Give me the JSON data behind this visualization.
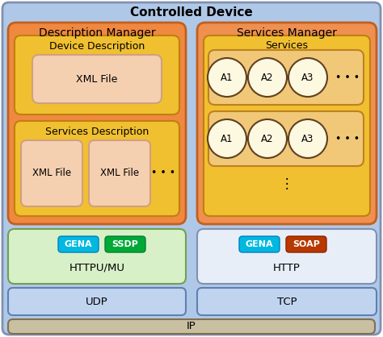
{
  "title": "Controlled Device",
  "title_fontsize": 11,
  "title_fontweight": "bold",
  "bg_outer": "#b0c8e8",
  "bg_desc_manager": "#f08840",
  "bg_services_manager": "#f09050",
  "bg_device_desc": "#f0c030",
  "bg_services_desc": "#f0c030",
  "bg_xml_file": "#f5d0b0",
  "bg_services_box": "#f0c030",
  "bg_service_row": "#f0c878",
  "bg_service_circle": "#fdf8e0",
  "bg_protocol_left": "#d8f0c8",
  "bg_protocol_right": "#e8eef8",
  "bg_udp_tcp": "#c0d4f0",
  "bg_ip": "#c8c0a0",
  "color_gena": "#00b8e0",
  "color_ssdp": "#00a838",
  "color_soap": "#b83800",
  "label_desc_manager": "Description Manager",
  "label_services_manager": "Services Manager",
  "label_device_desc": "Device Description",
  "label_services_desc": "Services Description",
  "label_xml_file": "XML File",
  "label_services": "Services",
  "label_httpu": "HTTPU/MU",
  "label_http": "HTTP",
  "label_udp": "UDP",
  "label_tcp": "TCP",
  "label_ip": "IP",
  "label_gena": "GENA",
  "label_ssdp": "SSDP",
  "label_soap": "SOAP",
  "dots3": "• • •",
  "vdots": "⋮"
}
